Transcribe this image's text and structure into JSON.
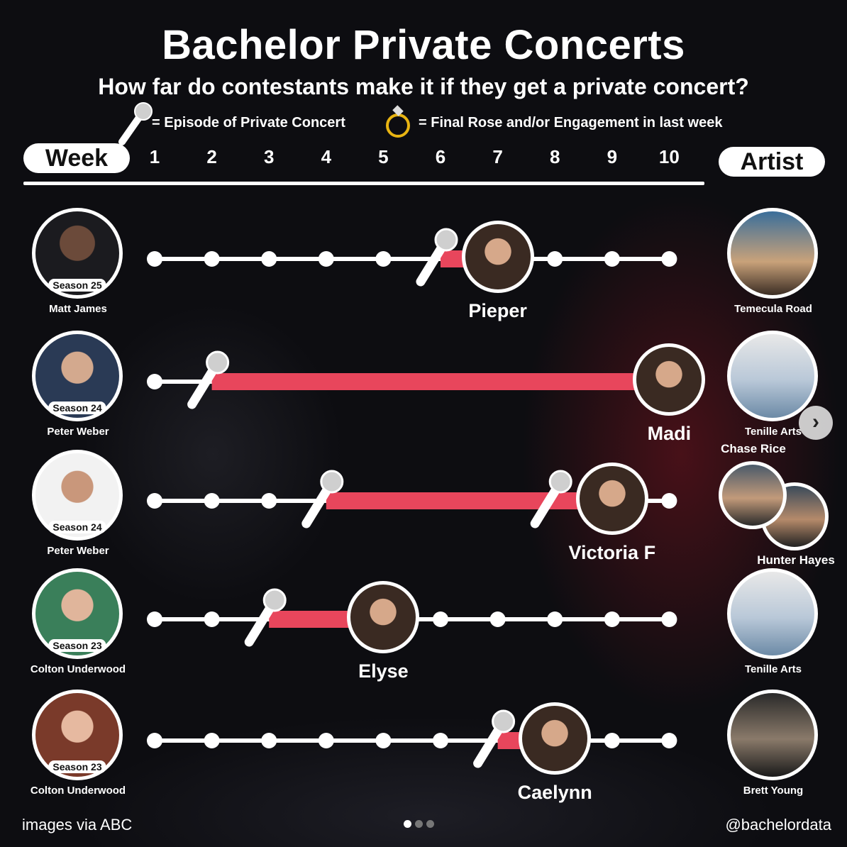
{
  "title": "Bachelor Private Concerts",
  "subtitle": "How far do contestants make it if they get a private concert?",
  "legend": {
    "concert_text": "= Episode of Private Concert",
    "final_rose_text": "= Final Rose and/or Engagement in last week",
    "concert_icon": "microphone-icon",
    "final_rose_icon": "ring-icon"
  },
  "header": {
    "week_label": "Week",
    "artist_label": "Artist"
  },
  "footer": {
    "credit": "images via ABC",
    "handle": "@bachelordata"
  },
  "carousel": {
    "pages": 3,
    "active_page": 1
  },
  "colors": {
    "bar": "#e8465c",
    "accent_ring": "#e8b412",
    "line": "#ffffff"
  },
  "chart_data": {
    "type": "timeline",
    "title": "Bachelor Private Concerts",
    "subtitle": "How far do contestants make it if they get a private concert?",
    "weeks": [
      1,
      2,
      3,
      4,
      5,
      6,
      7,
      8,
      9,
      10
    ],
    "rows": [
      {
        "season": "Season 25",
        "bachelor": "Matt James",
        "contestant": "Pieper",
        "concert_weeks": [
          6
        ],
        "last_week": 7,
        "artists": [
          "Temecula Road"
        ]
      },
      {
        "season": "Season 24",
        "bachelor": "Peter Weber",
        "contestant": "Madi",
        "concert_weeks": [
          2
        ],
        "last_week": 10,
        "artists": [
          "Tenille Arts"
        ]
      },
      {
        "season": "Season 24",
        "bachelor": "Peter Weber",
        "contestant": "Victoria F",
        "concert_weeks": [
          4,
          8
        ],
        "last_week": 9,
        "artists": [
          "Chase Rice",
          "Hunter Hayes"
        ]
      },
      {
        "season": "Season 23",
        "bachelor": "Colton Underwood",
        "contestant": "Elyse",
        "concert_weeks": [
          3
        ],
        "last_week": 5,
        "artists": [
          "Tenille Arts"
        ]
      },
      {
        "season": "Season 23",
        "bachelor": "Colton Underwood",
        "contestant": "Caelynn",
        "concert_weeks": [
          7
        ],
        "last_week": 8,
        "artists": [
          "Brett Young"
        ]
      }
    ]
  }
}
